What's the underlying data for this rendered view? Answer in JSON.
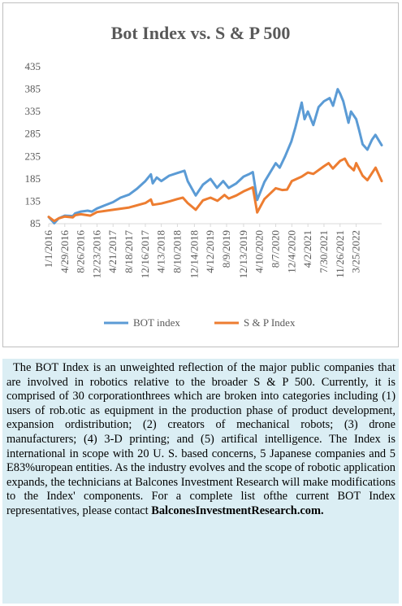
{
  "chart_data": {
    "type": "line",
    "title": "Bot Index vs. S & P 500",
    "ylim": [
      85,
      435
    ],
    "yticks": [
      85,
      135,
      185,
      235,
      285,
      335,
      385,
      435
    ],
    "xticks": [
      "1/1/2016",
      "4/29/2016",
      "8/26/2016",
      "12/23/2016",
      "4/21/2017",
      "8/18/2017",
      "12/16/2017",
      "4/13/2018",
      "8/10/2018",
      "12/14/2018",
      "4/12/2019",
      "8/9/2019",
      "12/13/2019",
      "4/10/2020",
      "8/7/2020",
      "12/4/2020",
      "4/2/2021",
      "7/30/2021",
      "11/26/2021",
      "3/25/2022"
    ],
    "x_end": "9/30/2022",
    "grid": false,
    "legend_position": "bottom",
    "series": [
      {
        "name": "BOT index",
        "color": "#5b9bd5",
        "points": [
          [
            "2016-01-01",
            100
          ],
          [
            "2016-02-11",
            86
          ],
          [
            "2016-03-15",
            97
          ],
          [
            "2016-04-29",
            103
          ],
          [
            "2016-06-27",
            102
          ],
          [
            "2016-07-15",
            108
          ],
          [
            "2016-08-26",
            112
          ],
          [
            "2016-10-15",
            114
          ],
          [
            "2016-11-15",
            112
          ],
          [
            "2016-12-23",
            119
          ],
          [
            "2017-02-20",
            126
          ],
          [
            "2017-04-21",
            133
          ],
          [
            "2017-06-15",
            143
          ],
          [
            "2017-08-18",
            150
          ],
          [
            "2017-10-15",
            163
          ],
          [
            "2017-12-16",
            180
          ],
          [
            "2018-01-26",
            195
          ],
          [
            "2018-02-09",
            175
          ],
          [
            "2018-03-10",
            188
          ],
          [
            "2018-04-13",
            180
          ],
          [
            "2018-06-10",
            192
          ],
          [
            "2018-08-10",
            198
          ],
          [
            "2018-10-01",
            203
          ],
          [
            "2018-10-25",
            180
          ],
          [
            "2018-12-24",
            148
          ],
          [
            "2019-02-15",
            172
          ],
          [
            "2019-04-12",
            185
          ],
          [
            "2019-05-30",
            165
          ],
          [
            "2019-07-15",
            180
          ],
          [
            "2019-08-25",
            165
          ],
          [
            "2019-10-20",
            175
          ],
          [
            "2019-12-13",
            190
          ],
          [
            "2020-01-20",
            195
          ],
          [
            "2020-02-19",
            200
          ],
          [
            "2020-03-23",
            138
          ],
          [
            "2020-05-15",
            178
          ],
          [
            "2020-08-07",
            220
          ],
          [
            "2020-09-05",
            210
          ],
          [
            "2020-10-15",
            235
          ],
          [
            "2020-11-30",
            268
          ],
          [
            "2020-12-31",
            300
          ],
          [
            "2021-02-15",
            355
          ],
          [
            "2021-03-08",
            318
          ],
          [
            "2021-04-02",
            335
          ],
          [
            "2021-05-12",
            305
          ],
          [
            "2021-06-20",
            345
          ],
          [
            "2021-07-30",
            358
          ],
          [
            "2021-09-10",
            365
          ],
          [
            "2021-10-05",
            348
          ],
          [
            "2021-11-08",
            385
          ],
          [
            "2021-11-26",
            375
          ],
          [
            "2021-12-20",
            358
          ],
          [
            "2022-01-27",
            310
          ],
          [
            "2022-02-15",
            335
          ],
          [
            "2022-03-25",
            318
          ],
          [
            "2022-04-15",
            295
          ],
          [
            "2022-05-12",
            262
          ],
          [
            "2022-06-16",
            250
          ],
          [
            "2022-07-20",
            272
          ],
          [
            "2022-08-15",
            283
          ],
          [
            "2022-09-30",
            260
          ]
        ]
      },
      {
        "name": "S & P Index",
        "color": "#ed7d31",
        "points": [
          [
            "2016-01-01",
            100
          ],
          [
            "2016-02-11",
            91
          ],
          [
            "2016-03-15",
            97
          ],
          [
            "2016-04-29",
            101
          ],
          [
            "2016-06-27",
            99
          ],
          [
            "2016-07-15",
            104
          ],
          [
            "2016-08-26",
            106
          ],
          [
            "2016-11-04",
            103
          ],
          [
            "2016-12-23",
            111
          ],
          [
            "2017-04-21",
            116
          ],
          [
            "2017-08-18",
            121
          ],
          [
            "2017-12-16",
            131
          ],
          [
            "2018-01-26",
            139
          ],
          [
            "2018-02-09",
            127
          ],
          [
            "2018-04-13",
            130
          ],
          [
            "2018-06-15",
            135
          ],
          [
            "2018-08-10",
            140
          ],
          [
            "2018-09-20",
            143
          ],
          [
            "2018-10-25",
            131
          ],
          [
            "2018-12-24",
            116
          ],
          [
            "2019-02-15",
            137
          ],
          [
            "2019-04-12",
            143
          ],
          [
            "2019-06-03",
            136
          ],
          [
            "2019-07-25",
            149
          ],
          [
            "2019-08-25",
            141
          ],
          [
            "2019-10-20",
            148
          ],
          [
            "2019-12-13",
            157
          ],
          [
            "2020-02-19",
            166
          ],
          [
            "2020-03-23",
            110
          ],
          [
            "2020-05-15",
            140
          ],
          [
            "2020-08-07",
            164
          ],
          [
            "2020-09-23",
            160
          ],
          [
            "2020-10-30",
            161
          ],
          [
            "2020-12-04",
            180
          ],
          [
            "2021-02-15",
            190
          ],
          [
            "2021-04-02",
            199
          ],
          [
            "2021-05-12",
            196
          ],
          [
            "2021-07-30",
            213
          ],
          [
            "2021-09-02",
            220
          ],
          [
            "2021-10-04",
            208
          ],
          [
            "2021-11-26",
            225
          ],
          [
            "2021-12-31",
            230
          ],
          [
            "2022-01-27",
            215
          ],
          [
            "2022-03-08",
            204
          ],
          [
            "2022-03-25",
            220
          ],
          [
            "2022-05-12",
            192
          ],
          [
            "2022-06-16",
            182
          ],
          [
            "2022-08-16",
            210
          ],
          [
            "2022-09-30",
            180
          ]
        ]
      }
    ]
  },
  "description": {
    "text": "The BOT Index is an unweighted reflection of the major public companies that are involved in robotics relative to the broader S & P 500. Currently, it is comprised of 30 corporationthrees which are broken into categories including (1) users of rob.otic as equipment in the production phase of product development, expansion ordistribution; (2) creators of mechanical robots; (3) drone manufacturers; (4) 3-D printing; and (5) artifical intelligence. The Index is international in scope with 20 U. S. based concerns, 5 Japanese companies and 5 E83%uropean entities. As the industry evolves and the scope of robotic application expands, the technicians at Balcones Investment Research will make modifications to the Index' components. For a complete list ofthe current BOT Index representatives, please contact",
    "link": "BalconesInvestmentResearch.com."
  }
}
